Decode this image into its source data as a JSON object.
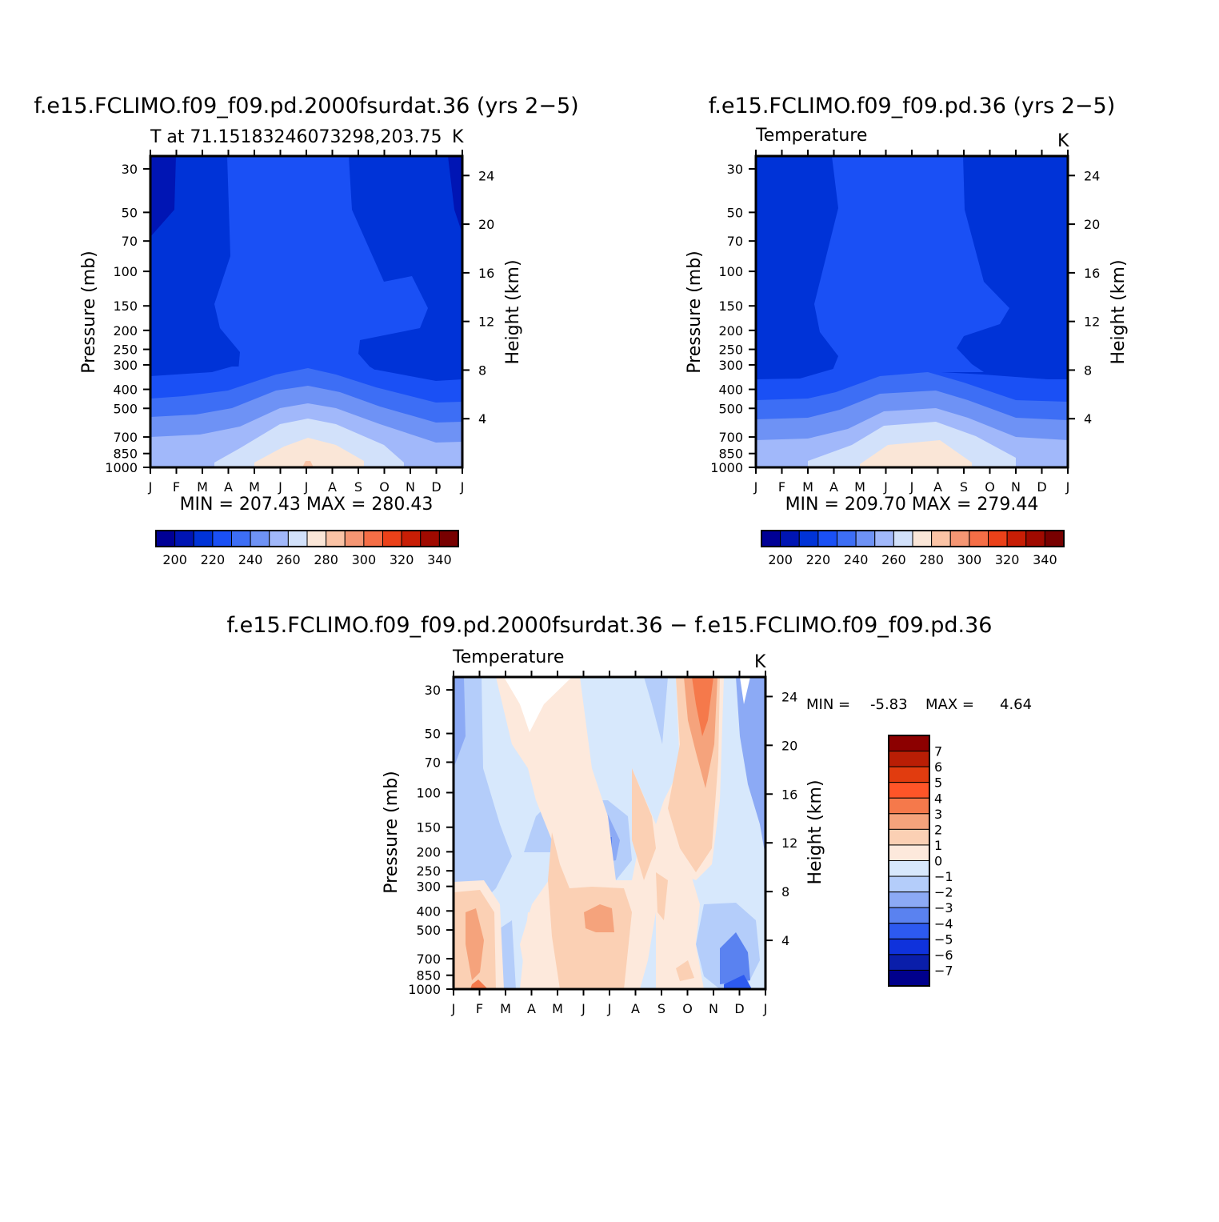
{
  "chart_data": [
    {
      "type": "heatmap",
      "title": "f.e15.FCLIMO.f09_f09.pd.2000fsurdat.36 (yrs 2-5)",
      "subtitle": "T at 71.15183246073298,203.75",
      "units": "K",
      "ylabel": "Pressure (mb)",
      "y2label": "Height (km)",
      "x_ticks": [
        "J",
        "F",
        "M",
        "A",
        "M",
        "J",
        "J",
        "A",
        "S",
        "O",
        "N",
        "D",
        "J"
      ],
      "y_ticks": [
        "30",
        "50",
        "70",
        "100",
        "150",
        "200",
        "250",
        "300",
        "400",
        "500",
        "700",
        "850",
        "1000"
      ],
      "y2_ticks": [
        "24",
        "20",
        "16",
        "12",
        "8",
        "4"
      ],
      "stats": "MIN = 207.43 MAX = 280.43",
      "min": 207.43,
      "max": 280.43,
      "colorbar": {
        "levels": [
          200,
          210,
          220,
          230,
          240,
          250,
          260,
          270,
          280,
          290,
          300,
          310,
          320,
          330,
          340
        ],
        "labels": [
          "200",
          "220",
          "240",
          "260",
          "280",
          "300",
          "320",
          "340"
        ],
        "colors": [
          "#000096",
          "#0015b4",
          "#0033d7",
          "#1a50f5",
          "#3d6ef5",
          "#6e92f5",
          "#a1b8fa",
          "#d2e1fa",
          "#fae6d7",
          "#fac3a5",
          "#f59673",
          "#f56e46",
          "#eb4119",
          "#c81e05",
          "#a00a00",
          "#780000"
        ]
      }
    },
    {
      "type": "heatmap",
      "title": "f.e15.FCLIMO.f09_f09.pd.36 (yrs 2-5)",
      "subtitle": "Temperature",
      "units": "K",
      "ylabel": "Pressure (mb)",
      "y2label": "Height (km)",
      "x_ticks": [
        "J",
        "F",
        "M",
        "A",
        "M",
        "J",
        "J",
        "A",
        "S",
        "O",
        "N",
        "D",
        "J"
      ],
      "y_ticks": [
        "30",
        "50",
        "70",
        "100",
        "150",
        "200",
        "250",
        "300",
        "400",
        "500",
        "700",
        "850",
        "1000"
      ],
      "y2_ticks": [
        "24",
        "20",
        "16",
        "12",
        "8",
        "4"
      ],
      "stats": "MIN = 209.70 MAX = 279.44",
      "min": 209.7,
      "max": 279.44,
      "colorbar": {
        "levels": [
          200,
          210,
          220,
          230,
          240,
          250,
          260,
          270,
          280,
          290,
          300,
          310,
          320,
          330,
          340
        ],
        "labels": [
          "200",
          "220",
          "240",
          "260",
          "280",
          "300",
          "320",
          "340"
        ],
        "colors": [
          "#000096",
          "#0015b4",
          "#0033d7",
          "#1a50f5",
          "#3d6ef5",
          "#6e92f5",
          "#a1b8fa",
          "#d2e1fa",
          "#fae6d7",
          "#fac3a5",
          "#f59673",
          "#f56e46",
          "#eb4119",
          "#c81e05",
          "#a00a00",
          "#780000"
        ]
      }
    },
    {
      "type": "heatmap",
      "title": "f.e15.FCLIMO.f09_f09.pd.2000fsurdat.36 - f.e15.FCLIMO.f09_f09.pd.36",
      "subtitle": "Temperature",
      "units": "K",
      "ylabel": "Pressure (mb)",
      "y2label": "Height (km)",
      "x_ticks": [
        "J",
        "F",
        "M",
        "A",
        "M",
        "J",
        "J",
        "A",
        "S",
        "O",
        "N",
        "D",
        "J"
      ],
      "y_ticks": [
        "30",
        "50",
        "70",
        "100",
        "150",
        "200",
        "250",
        "300",
        "400",
        "500",
        "700",
        "850",
        "1000"
      ],
      "y2_ticks": [
        "24",
        "20",
        "16",
        "12",
        "8",
        "4"
      ],
      "stats_min_label": "MIN =",
      "stats_min": "-5.83",
      "stats_max_label": "MAX =",
      "stats_max": "4.64",
      "min": -5.83,
      "max": 4.64,
      "colorbar": {
        "levels": [
          -7,
          -6,
          -5,
          -4,
          -3,
          -2,
          -1,
          0,
          1,
          2,
          3,
          4,
          5,
          6,
          7
        ],
        "labels": [
          "7",
          "6",
          "5",
          "4",
          "3",
          "2",
          "1",
          "0",
          "-1",
          "-2",
          "-3",
          "-4",
          "-5",
          "-6",
          "-7"
        ],
        "colors": [
          "#8c0000",
          "#b91e05",
          "#e13c0f",
          "#ff5528",
          "#f5794b",
          "#f5a37c",
          "#fbd0b4",
          "#fde9dc",
          "#d7e8fc",
          "#b4cdfa",
          "#8caaf5",
          "#5a82f0",
          "#2d5af0",
          "#0f32dc",
          "#0a1eaa",
          "#00008c"
        ]
      }
    }
  ]
}
